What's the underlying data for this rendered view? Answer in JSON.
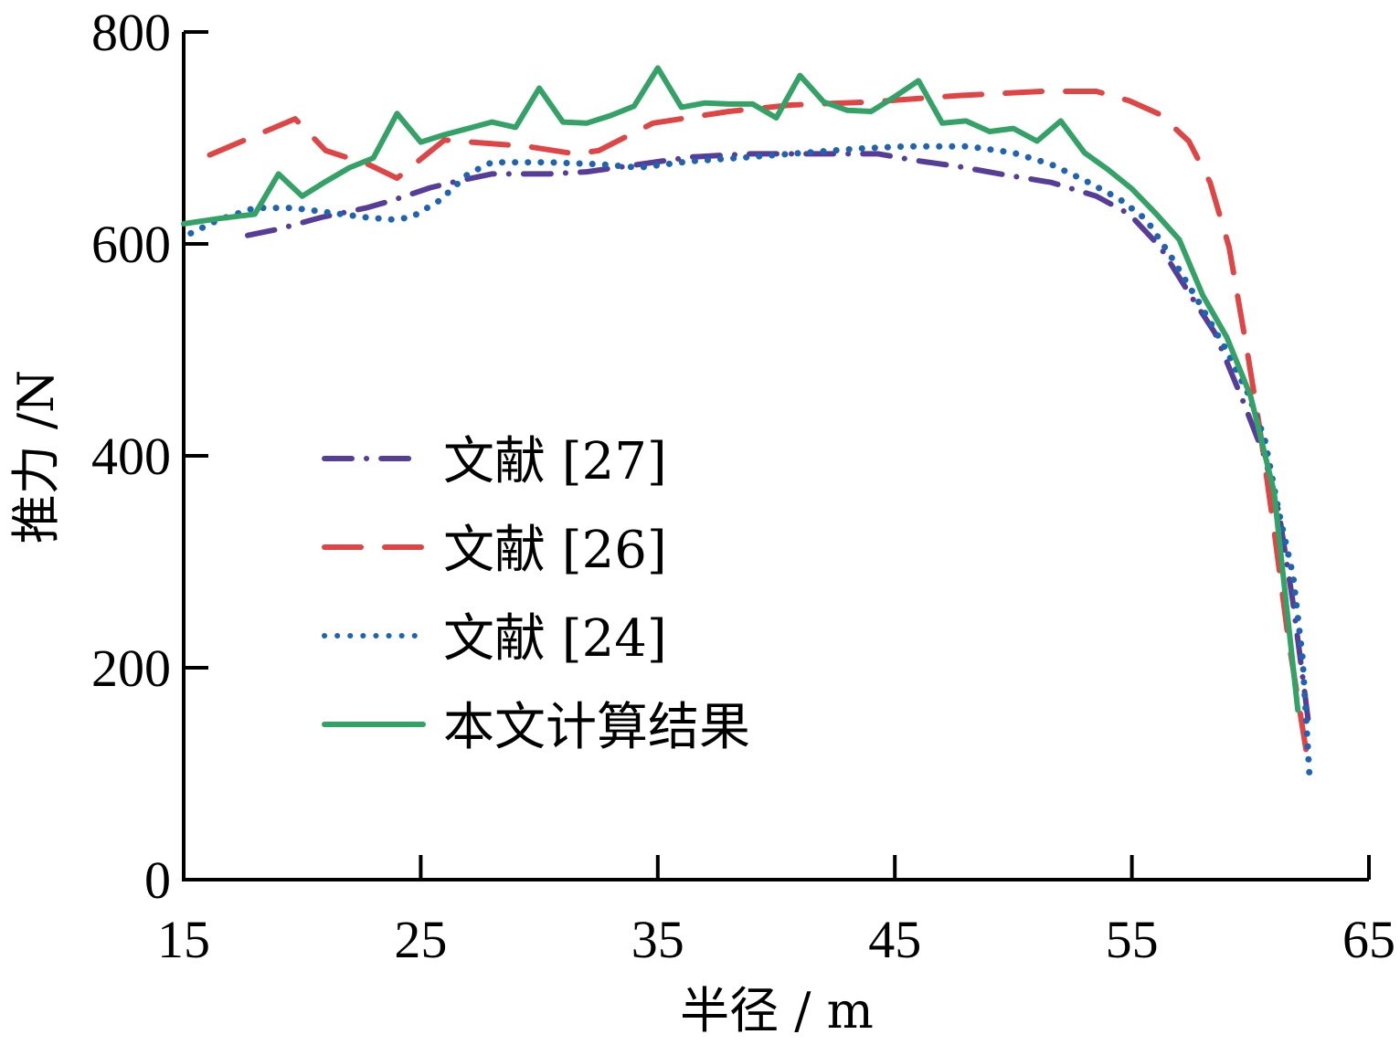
{
  "chart_data": {
    "type": "line",
    "title": "",
    "xlabel": "半径 / m",
    "ylabel": "推力 /N",
    "xlim": [
      15,
      65
    ],
    "ylim": [
      0,
      800
    ],
    "xticks": [
      "15",
      "25",
      "35",
      "45",
      "55",
      "65"
    ],
    "yticks": [
      "0",
      "200",
      "400",
      "600",
      "800"
    ],
    "grid": false,
    "legend_position": "center-left",
    "series": [
      {
        "name": "文献 [27]",
        "color": "#553d98",
        "style": "dashdot",
        "x": [
          17.7,
          19,
          20.8,
          22.7,
          23.8,
          25.4,
          26.5,
          28,
          30.4,
          32,
          34.2,
          36.4,
          38.9,
          41.9,
          44.3,
          45.8,
          47.7,
          49.7,
          51.6,
          53.5,
          54.9,
          56.2,
          57.4,
          58.5,
          59.7,
          60.6,
          61.2,
          61.8,
          62.2,
          62.5
        ],
        "y": [
          608,
          614,
          625,
          634,
          641,
          653,
          659,
          666,
          666,
          668,
          675,
          682,
          685,
          685,
          685,
          679,
          673,
          665,
          658,
          645,
          628,
          597,
          554,
          516,
          451,
          399,
          347,
          261,
          192,
          140
        ]
      },
      {
        "name": "文献 [26]",
        "color": "#e04545",
        "style": "dashed",
        "x": [
          16.1,
          19.7,
          21,
          22.8,
          24,
          26,
          29.5,
          31.5,
          32.5,
          34.8,
          38,
          40.6,
          44,
          47.7,
          51.2,
          53.5,
          54.9,
          56.2,
          57.4,
          58.3,
          59.1,
          59.9,
          60.4,
          61,
          61.6,
          62.4
        ],
        "y": [
          684,
          718,
          688,
          675,
          662,
          698,
          692,
          685,
          688,
          714,
          725,
          731,
          734,
          740,
          744,
          744,
          735,
          722,
          697,
          658,
          597,
          494,
          425,
          330,
          227,
          115
        ]
      },
      {
        "name": "文献 [24]",
        "color": "#1f63b3",
        "style": "dotted",
        "x": [
          15.3,
          16.5,
          18,
          19.6,
          21,
          22.7,
          23.8,
          24.6,
          25.8,
          27,
          28,
          30.4,
          32.7,
          34.2,
          36.4,
          38.9,
          41.2,
          43.5,
          45.4,
          48.1,
          50,
          51.6,
          53.1,
          54.5,
          55.6,
          56.6,
          57.8,
          58.9,
          59.9,
          60.6,
          61.2,
          61.8,
          62.2,
          62.5
        ],
        "y": [
          610,
          623,
          634,
          634,
          630,
          625,
          623,
          625,
          641,
          666,
          677,
          677,
          675,
          672,
          678,
          682,
          686,
          690,
          692,
          692,
          686,
          675,
          659,
          642,
          623,
          590,
          546,
          503,
          459,
          416,
          347,
          287,
          209,
          96
        ]
      },
      {
        "name": "本文计算结果",
        "color": "#34a266",
        "style": "solid",
        "x": [
          15,
          16.5,
          18,
          19,
          20,
          21,
          22,
          23,
          24,
          25,
          26,
          27,
          28,
          29,
          30,
          31,
          32,
          33,
          34,
          35,
          36,
          37,
          38,
          39,
          40,
          41,
          42,
          43,
          44,
          45,
          46,
          47,
          48,
          49,
          50,
          51,
          52,
          53,
          54,
          55,
          56,
          57,
          58,
          59,
          60,
          61,
          62
        ],
        "y": [
          619,
          624,
          628,
          666,
          645,
          659,
          672,
          681,
          723,
          696,
          703,
          709,
          715,
          710,
          747,
          715,
          714,
          721,
          730,
          766,
          729,
          733,
          732,
          732,
          719,
          759,
          734,
          726,
          725,
          739,
          754,
          714,
          716,
          706,
          709,
          697,
          716,
          686,
          670,
          652,
          629,
          604,
          551,
          512,
          457,
          366,
          160
        ]
      }
    ]
  }
}
